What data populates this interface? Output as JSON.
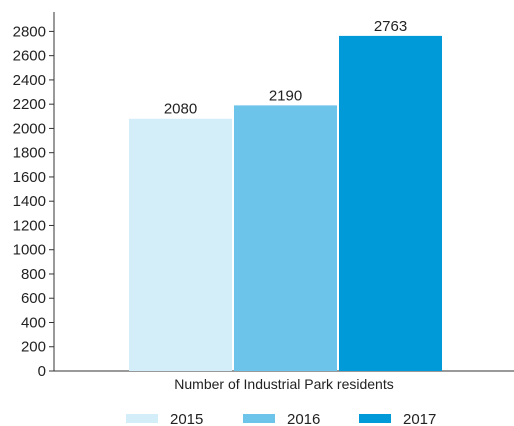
{
  "chart_data": {
    "type": "bar",
    "categories": [
      "Number of Industrial Park residents"
    ],
    "series": [
      {
        "name": "2015",
        "values": [
          2080
        ],
        "color": "#d4eef9"
      },
      {
        "name": "2016",
        "values": [
          2190
        ],
        "color": "#6cc4ea"
      },
      {
        "name": "2017",
        "values": [
          2763
        ],
        "color": "#009ad9"
      }
    ],
    "title": "",
    "xlabel": "Number of Industrial Park residents",
    "ylabel": "",
    "ylim": [
      0,
      2960
    ],
    "yticks": [
      0,
      200,
      400,
      600,
      800,
      1000,
      1200,
      1400,
      1600,
      1800,
      2000,
      2200,
      2400,
      2600,
      2800
    ],
    "data_labels": [
      "2080",
      "2190",
      "2763"
    ],
    "grid": false,
    "legend": {
      "position": "bottom",
      "labels": [
        "2015",
        "2016",
        "2017"
      ]
    }
  }
}
